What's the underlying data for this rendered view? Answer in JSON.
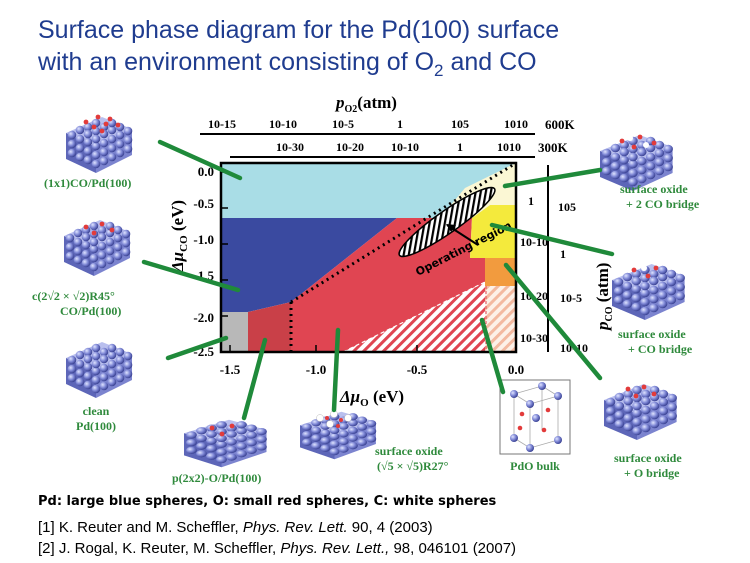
{
  "title": {
    "line1": "Surface phase diagram for the Pd(100) surface",
    "line2_pre": "with an environment consisting of O",
    "line2_sub": "2",
    "line2_post": " and CO"
  },
  "axes": {
    "x_label_pre": "Δμ",
    "x_label_sub": "O",
    "x_label_post": " (eV)",
    "y_label_pre": "Δμ",
    "y_label_sub": "CO",
    "y_label_post": " (eV)",
    "x_ticks": [
      "-1.5",
      "-1.0",
      "-0.5",
      "0.0"
    ],
    "y_ticks": [
      "0.0",
      "-0.5",
      "-1.0",
      "-1.5",
      "-2.0",
      "-2.5"
    ],
    "top_label_pre": "p",
    "top_label_sub": "O2",
    "top_label_post": "(atm)",
    "top_row1": [
      "10-15",
      "10-10",
      "10-5",
      "1",
      "105",
      "1010"
    ],
    "top_row1_temp": "600K",
    "top_row2": [
      "10-30",
      "10-20",
      "10-10",
      "1",
      "1010"
    ],
    "top_row2_temp": "300K",
    "right_label_pre": "p",
    "right_label_sub": "CO",
    "right_label_post": " (atm)",
    "right_col1": [
      "1",
      "10-10",
      "10-20",
      "10-30"
    ],
    "right_col2": [
      "105",
      "1",
      "10-5",
      "10-10"
    ]
  },
  "operating_region": "Operating region",
  "phases": {
    "co_1x1": "(1x1)CO/Pd(100)",
    "c2x2_line1": "c(2√2 × √2)R45°",
    "c2x2_line2": "CO/Pd(100)",
    "clean_line1": "clean",
    "clean_line2": "Pd(100)",
    "p2x2": "p(2x2)-O/Pd(100)",
    "oxide_root5_line1": "surface oxide",
    "oxide_root5_line2": "(√5 × √5)R27°",
    "pdo_bulk": "PdO bulk",
    "oxide_o_line1": "surface oxide",
    "oxide_o_line2": "+ O bridge",
    "oxide_co_line1": "surface oxide",
    "oxide_co_line2": "+ CO bridge",
    "oxide_2co_line1": "surface oxide",
    "oxide_2co_line2": "+ 2 CO bridge"
  },
  "legend": "Pd: large blue spheres, O: small red spheres, C: white spheres",
  "refs": {
    "r1_pre": "[1] K. Reuter and M. Scheffler, ",
    "r1_journal": "Phys. Rev. Lett.",
    "r1_post": " 90, 4 (2003)",
    "r2_pre": "[2] J. Rogal, K. Reuter, M. Scheffler, ",
    "r2_journal": "Phys. Rev. Lett.,",
    "r2_post": " 98, 046101 (2007)"
  },
  "colors": {
    "co_1x1": "#a9dde6",
    "c2x2": "#3a4aa0",
    "clean": "#b8b8b8",
    "p2x2": "#c94048",
    "oxide": "#e04552",
    "oxide_co": "#f4ea3c",
    "oxide_2co": "#fbf7d4",
    "oxide_o": "#f29b3e",
    "pdo_bulk": "#f8d9c4",
    "arrow_green": "#1f8a3a",
    "title_blue": "#1f3c8f"
  }
}
